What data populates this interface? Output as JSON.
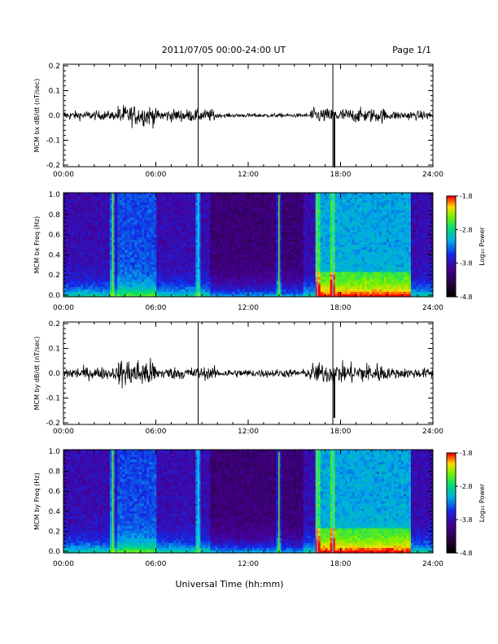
{
  "header": {
    "title": "2011/07/05  00:00-24:00 UT",
    "page": "Page 1/1"
  },
  "footer": {
    "xlabel": "Universal Time (hh:mm)"
  },
  "colorbar": {
    "label": "Log₁₀ Power",
    "ticks": [
      "-1.8",
      "-2.8",
      "-3.8",
      "-4.8"
    ]
  },
  "chart_data": [
    {
      "type": "line",
      "ylabel": "MCM bx dB/dt (nT/sec)",
      "xlim": [
        0,
        24
      ],
      "ylim": [
        -0.2,
        0.2
      ],
      "x_ticks": [
        "00:00",
        "06:00",
        "12:00",
        "18:00",
        "24:00"
      ],
      "y_ticks": [
        "0.2",
        "0.1",
        "0.0",
        "-0.1",
        "-0.2"
      ],
      "vertical_lines_hours": [
        8.75,
        17.5
      ],
      "spike_hour": 17.6,
      "spike_min": -0.21,
      "activity_profile": [
        {
          "from": 0,
          "to": 3.5,
          "amp": 0.022
        },
        {
          "from": 3.5,
          "to": 6.0,
          "amp": 0.05
        },
        {
          "from": 6.0,
          "to": 10.0,
          "amp": 0.03
        },
        {
          "from": 10.0,
          "to": 16.0,
          "amp": 0.01
        },
        {
          "from": 16.0,
          "to": 21.0,
          "amp": 0.035
        },
        {
          "from": 21.0,
          "to": 24.0,
          "amp": 0.022
        }
      ]
    },
    {
      "type": "heatmap",
      "ylabel": "MCM bx Freq (Hz)",
      "xlim": [
        0,
        24
      ],
      "ylim": [
        0,
        1.0
      ],
      "x_ticks": [
        "00:00",
        "06:00",
        "12:00",
        "18:00",
        "24:00"
      ],
      "y_ticks": [
        "1.0",
        "0.8",
        "0.6",
        "0.4",
        "0.2",
        "0.0"
      ],
      "color_range": [
        -4.8,
        -1.8
      ],
      "broadband_lines_hours": [
        3.2,
        8.75,
        14.0,
        16.5,
        17.5
      ],
      "enhanced_interval_hours": [
        16.3,
        22.5
      ]
    },
    {
      "type": "line",
      "ylabel": "MCM by dB/dt (nT/sec)",
      "xlim": [
        0,
        24
      ],
      "ylim": [
        -0.2,
        0.2
      ],
      "x_ticks": [
        "00:00",
        "06:00",
        "12:00",
        "18:00",
        "24:00"
      ],
      "y_ticks": [
        "0.2",
        "0.1",
        "0.0",
        "-0.1",
        "-0.2"
      ],
      "vertical_lines_hours": [
        8.75,
        17.5
      ],
      "spike_hour": 17.6,
      "spike_min": -0.18,
      "activity_profile": [
        {
          "from": 0,
          "to": 3.5,
          "amp": 0.03
        },
        {
          "from": 3.5,
          "to": 6.0,
          "amp": 0.07
        },
        {
          "from": 6.0,
          "to": 10.0,
          "amp": 0.03
        },
        {
          "from": 10.0,
          "to": 16.0,
          "amp": 0.02
        },
        {
          "from": 16.0,
          "to": 21.0,
          "amp": 0.05
        },
        {
          "from": 21.0,
          "to": 24.0,
          "amp": 0.025
        }
      ]
    },
    {
      "type": "heatmap",
      "ylabel": "MCM by Freq (Hz)",
      "xlim": [
        0,
        24
      ],
      "ylim": [
        0,
        1.0
      ],
      "x_ticks": [
        "00:00",
        "06:00",
        "12:00",
        "18:00",
        "24:00"
      ],
      "y_ticks": [
        "1.0",
        "0.8",
        "0.6",
        "0.4",
        "0.2",
        "0.0"
      ],
      "color_range": [
        -4.8,
        -1.8
      ],
      "broadband_lines_hours": [
        3.2,
        8.75,
        14.0,
        16.5,
        17.5
      ],
      "enhanced_interval_hours": [
        16.3,
        22.5
      ]
    }
  ]
}
